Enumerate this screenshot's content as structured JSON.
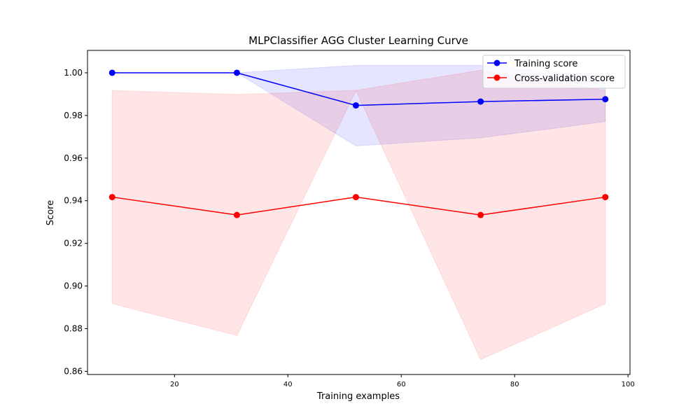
{
  "chart_data": {
    "type": "line",
    "title": "MLPClassifier AGG Cluster Learning Curve",
    "xlabel": "Training examples",
    "ylabel": "Score",
    "xlim": [
      4.65,
      100.35
    ],
    "ylim": [
      0.8585,
      1.0105
    ],
    "xticks": [
      20,
      40,
      60,
      80,
      100
    ],
    "yticks": [
      0.86,
      0.88,
      0.9,
      0.92,
      0.94,
      0.96,
      0.98,
      1.0
    ],
    "ytick_labels": [
      "0.86",
      "0.88",
      "0.90",
      "0.92",
      "0.94",
      "0.96",
      "0.98",
      "1.00"
    ],
    "grid": false,
    "legend_position": "top-right",
    "x": [
      9,
      31,
      52,
      74,
      96
    ],
    "series": [
      {
        "name": "Training score",
        "color": "#0000ff",
        "values": [
          1.0,
          1.0,
          0.9847,
          0.9865,
          0.9876
        ],
        "band_upper": [
          1.0,
          1.0,
          1.0035,
          1.0035,
          0.9982
        ],
        "band_lower": [
          1.0,
          1.0,
          0.9657,
          0.9695,
          0.9771
        ]
      },
      {
        "name": "Cross-validation score",
        "color": "#ff0000",
        "values": [
          0.9417,
          0.9333,
          0.9417,
          0.9333,
          0.9417
        ],
        "band_upper": [
          0.9917,
          0.9898,
          0.9918,
          1.0012,
          0.9917
        ],
        "band_lower": [
          0.8917,
          0.8768,
          0.9916,
          0.8655,
          0.8917
        ]
      }
    ]
  }
}
